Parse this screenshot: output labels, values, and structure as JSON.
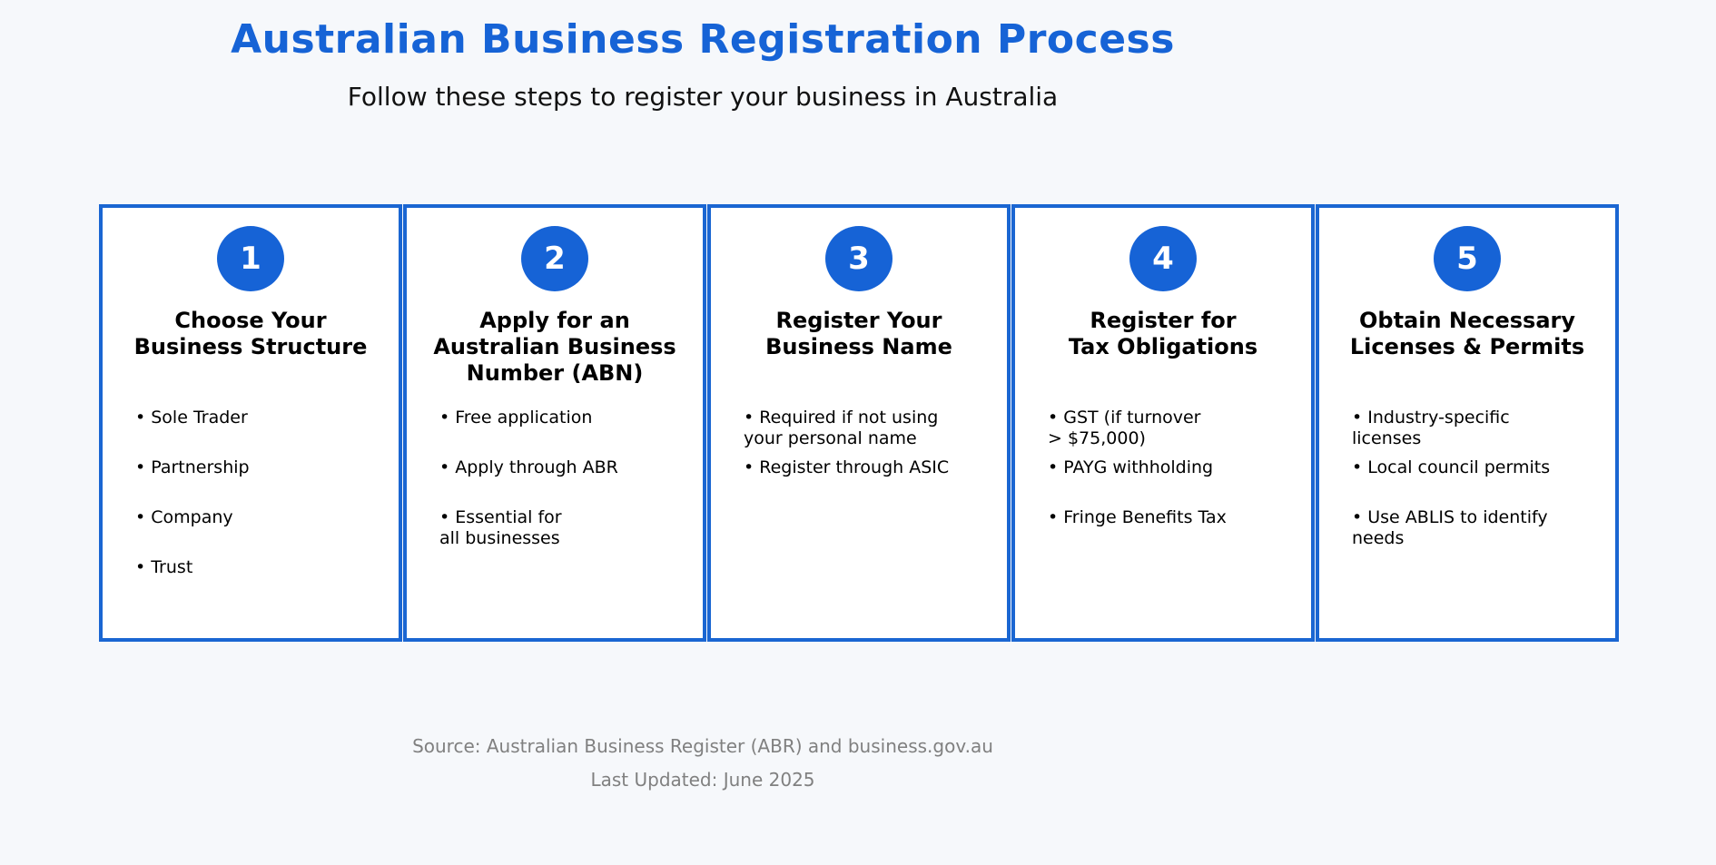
{
  "title": "Australian Business Registration Process",
  "subtitle": "Follow these steps to register your business in Australia",
  "steps": [
    {
      "number": "1",
      "title": "Choose Your\nBusiness Structure",
      "bullets": [
        "• Sole Trader",
        "• Partnership",
        "• Company",
        "• Trust"
      ]
    },
    {
      "number": "2",
      "title": "Apply for an\nAustralian Business\nNumber (ABN)",
      "bullets": [
        "• Free application",
        "• Apply through ABR",
        "• Essential for\n   all businesses"
      ]
    },
    {
      "number": "3",
      "title": "Register Your\nBusiness Name",
      "bullets": [
        "• Required if not using\n   your personal name",
        "• Register through ASIC"
      ]
    },
    {
      "number": "4",
      "title": "Register for\nTax Obligations",
      "bullets": [
        "• GST (if turnover\n   > $75,000)",
        "• PAYG withholding",
        "• Fringe Benefits Tax"
      ]
    },
    {
      "number": "5",
      "title": "Obtain Necessary\nLicenses & Permits",
      "bullets": [
        "• Industry-specific\n   licenses",
        "• Local council permits",
        "• Use ABLIS to identify\n   needs"
      ]
    }
  ],
  "footer": {
    "source": "Source: Australian Business Register (ABR) and business.gov.au",
    "updated": "Last Updated: June 2025"
  },
  "colors": {
    "accent": "#1663d6",
    "border": "#1a66d2",
    "footer_text": "#808080"
  }
}
